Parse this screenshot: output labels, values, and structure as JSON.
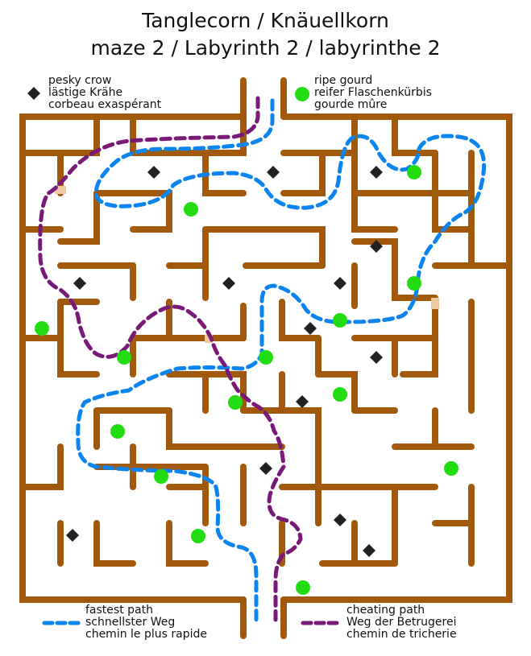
{
  "title": {
    "line1": "Tanglecorn / Knäuellkorn",
    "line2": "maze 2 / Labyrinth 2 / labyrinthe 2"
  },
  "legend": {
    "crow": {
      "en": "pesky crow",
      "de": "lästige Krähe",
      "fr": "corbeau exaspérant",
      "color": "#222222",
      "icon": "diamond-icon"
    },
    "gourd": {
      "en": "ripe gourd",
      "de": "reifer Flaschenkürbis",
      "fr": "gourde mûre",
      "color": "#22dd11",
      "icon": "dot-icon"
    },
    "fastest": {
      "en": "fastest path",
      "de": "schnellster Weg",
      "fr": "chemin le plus rapide",
      "color": "#0a84ef",
      "style": "dashed"
    },
    "cheating": {
      "en": "cheating path",
      "de": "Weg der Betrugerei",
      "fr": "chemin de tricherie",
      "color": "#7a1a78",
      "style": "dashed"
    }
  },
  "colors": {
    "wall": "#a15a0c",
    "gap_highlight": "#f0c9a0"
  }
}
